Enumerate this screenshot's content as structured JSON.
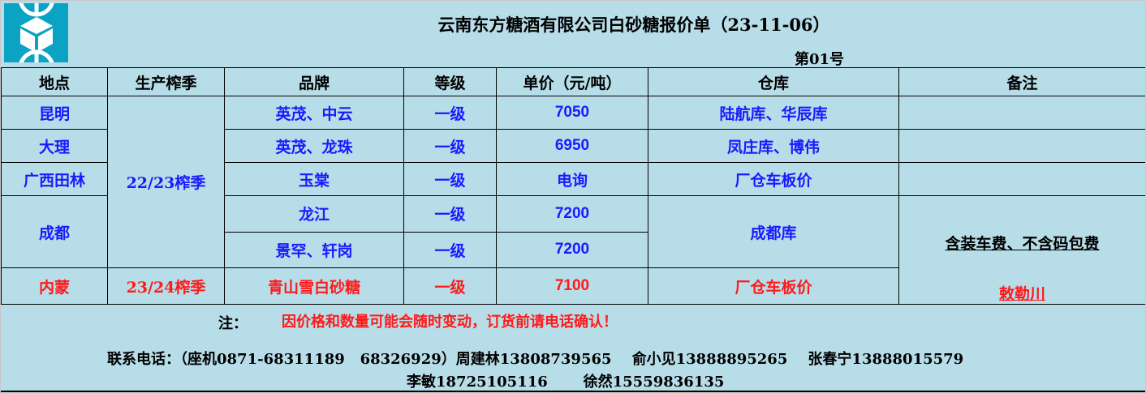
{
  "title": "云南东方糖酒有限公司白砂糖报价单（23-11-06）",
  "doc_no": "第01号",
  "colors": {
    "background": "#b7dde8",
    "logo": "#0aa3c4",
    "blue_text": "#1a1aff",
    "red_text": "#ff1a1a"
  },
  "headers": [
    "地点",
    "生产榨季",
    "品牌",
    "等级",
    "单价（元/吨）",
    "仓库",
    "备注"
  ],
  "rows": [
    {
      "location": "昆明",
      "season": "22/23榨季",
      "brand": "英茂、中云",
      "grade": "一级",
      "price": "7050",
      "warehouse": "陆航库、华辰库",
      "remark": ""
    },
    {
      "location": "大理",
      "brand": "英茂、龙珠",
      "grade": "一级",
      "price": "6950",
      "warehouse": "凤庄库、博伟",
      "remark": ""
    },
    {
      "location": "广西田林",
      "brand": "玉棠",
      "grade": "一级",
      "price": "电询",
      "warehouse": "厂仓车板价",
      "remark": ""
    },
    {
      "location": "成都",
      "brand": "龙江",
      "grade": "一级",
      "price": "7200",
      "warehouse": "成都库",
      "remark": "含装车费、不含码包费"
    },
    {
      "brand": "景罕、轩岗",
      "grade": "一级",
      "price": "7200"
    },
    {
      "location": "内蒙",
      "season": "23/24榨季",
      "brand": "青山雪白砂糖",
      "grade": "一级",
      "price": "7100",
      "warehouse": "厂仓车板价",
      "remark": "敕勒川"
    }
  ],
  "note_label": "注：",
  "note_text": "因价格和数量可能会随时变动，订货前请电话确认！",
  "contacts_line1": "联系电话：（座机0871-68311189   68326929）周建林13808739565    俞小见13888895265    张春宁13888015579",
  "contacts_line2": "李敏18725105116       徐然15559836135"
}
